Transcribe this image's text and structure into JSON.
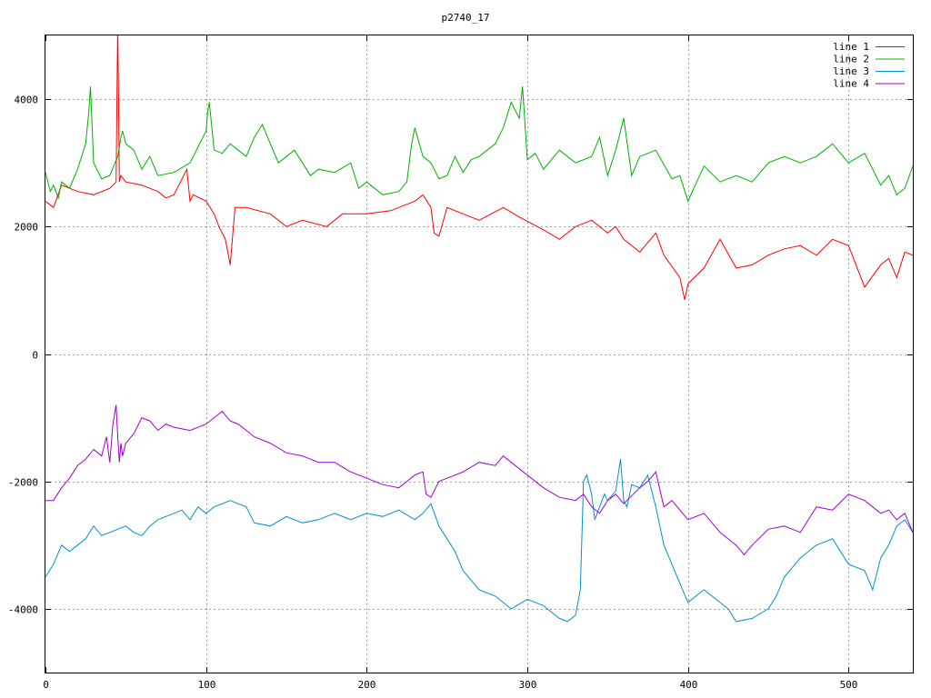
{
  "chart_data": {
    "type": "line",
    "title": "p2740_17",
    "xlabel": "",
    "ylabel": "",
    "xlim": [
      0,
      540
    ],
    "ylim": [
      -5000,
      5000
    ],
    "x_ticks": [
      "0",
      "100",
      "200",
      "300",
      "400",
      "500"
    ],
    "y_ticks": [
      "-4000",
      "-2000",
      "0",
      "2000",
      "4000"
    ],
    "grid": true,
    "legend_position": "top-right",
    "series": [
      {
        "name": "line 1",
        "color": "#ff0000",
        "x": [
          0,
          5,
          10,
          20,
          30,
          40,
          44,
          45,
          46,
          47,
          50,
          60,
          70,
          75,
          80,
          88,
          90,
          92,
          100,
          105,
          108,
          112,
          115,
          118,
          125,
          140,
          150,
          160,
          175,
          185,
          200,
          215,
          230,
          235,
          240,
          242,
          245,
          250,
          270,
          285,
          295,
          310,
          320,
          330,
          340,
          350,
          355,
          360,
          370,
          380,
          385,
          395,
          398,
          400,
          410,
          420,
          430,
          440,
          450,
          460,
          470,
          480,
          490,
          500,
          510,
          520,
          525,
          530,
          535,
          540
        ],
        "y": [
          2400,
          2300,
          2650,
          2550,
          2500,
          2600,
          2700,
          5200,
          2700,
          2800,
          2700,
          2650,
          2550,
          2450,
          2500,
          2900,
          2400,
          2500,
          2400,
          2200,
          2000,
          1800,
          1400,
          2300,
          2300,
          2200,
          2000,
          2100,
          2000,
          2200,
          2200,
          2250,
          2400,
          2500,
          2300,
          1900,
          1850,
          2300,
          2100,
          2300,
          2150,
          1950,
          1800,
          2000,
          2100,
          1900,
          2000,
          1800,
          1600,
          1900,
          1550,
          1200,
          850,
          1100,
          1350,
          1800,
          1350,
          1400,
          1550,
          1650,
          1700,
          1550,
          1800,
          1700,
          1050,
          1400,
          1500,
          1200,
          1600,
          1550
        ]
      },
      {
        "name": "line 2",
        "color": "#00b000",
        "x": [
          0,
          3,
          5,
          8,
          10,
          15,
          20,
          25,
          27,
          28,
          30,
          35,
          40,
          45,
          47,
          48,
          50,
          55,
          60,
          65,
          70,
          80,
          90,
          100,
          101,
          102,
          105,
          110,
          115,
          120,
          125,
          130,
          135,
          140,
          145,
          150,
          155,
          160,
          165,
          170,
          180,
          190,
          195,
          200,
          210,
          220,
          225,
          228,
          230,
          235,
          240,
          245,
          250,
          255,
          260,
          265,
          270,
          280,
          285,
          290,
          295,
          297,
          300,
          305,
          310,
          320,
          330,
          340,
          345,
          350,
          355,
          360,
          365,
          370,
          380,
          390,
          395,
          400,
          410,
          420,
          430,
          440,
          450,
          460,
          470,
          480,
          490,
          500,
          510,
          520,
          525,
          530,
          535,
          540
        ],
        "y": [
          2850,
          2550,
          2650,
          2450,
          2700,
          2600,
          2900,
          3300,
          3800,
          4200,
          3000,
          2750,
          2800,
          3100,
          3400,
          3500,
          3300,
          3200,
          2900,
          3100,
          2800,
          2850,
          3000,
          3500,
          3800,
          3950,
          3200,
          3150,
          3300,
          3200,
          3100,
          3400,
          3600,
          3300,
          3000,
          3100,
          3200,
          3000,
          2800,
          2900,
          2850,
          3000,
          2600,
          2700,
          2500,
          2550,
          2700,
          3300,
          3550,
          3100,
          3000,
          2750,
          2800,
          3100,
          2850,
          3050,
          3100,
          3300,
          3550,
          3950,
          3700,
          4200,
          3050,
          3150,
          2900,
          3200,
          3000,
          3100,
          3400,
          2800,
          3200,
          3700,
          2800,
          3100,
          3200,
          2750,
          2800,
          2400,
          2950,
          2700,
          2800,
          2700,
          3000,
          3100,
          3000,
          3100,
          3300,
          3000,
          3150,
          2650,
          2800,
          2500,
          2600,
          2950
        ]
      },
      {
        "name": "line 3",
        "color": "#0090d0",
        "x": [
          0,
          5,
          10,
          15,
          20,
          25,
          30,
          35,
          40,
          45,
          50,
          55,
          60,
          65,
          70,
          75,
          80,
          85,
          90,
          95,
          100,
          105,
          110,
          115,
          120,
          125,
          130,
          140,
          150,
          160,
          170,
          180,
          190,
          200,
          210,
          220,
          230,
          235,
          240,
          245,
          250,
          255,
          260,
          270,
          280,
          290,
          300,
          310,
          320,
          325,
          330,
          333,
          335,
          337,
          340,
          342,
          345,
          348,
          350,
          355,
          358,
          360,
          362,
          365,
          370,
          375,
          378,
          380,
          385,
          390,
          395,
          400,
          405,
          410,
          420,
          425,
          430,
          440,
          450,
          455,
          460,
          470,
          480,
          490,
          500,
          510,
          515,
          520,
          525,
          530,
          535,
          540
        ],
        "y": [
          -3500,
          -3300,
          -3000,
          -3100,
          -3000,
          -2900,
          -2700,
          -2850,
          -2800,
          -2750,
          -2700,
          -2800,
          -2850,
          -2700,
          -2600,
          -2550,
          -2500,
          -2450,
          -2600,
          -2400,
          -2500,
          -2400,
          -2350,
          -2300,
          -2350,
          -2400,
          -2650,
          -2700,
          -2550,
          -2650,
          -2600,
          -2500,
          -2600,
          -2500,
          -2550,
          -2450,
          -2600,
          -2500,
          -2350,
          -2700,
          -2900,
          -3100,
          -3400,
          -3700,
          -3800,
          -4000,
          -3850,
          -3950,
          -4150,
          -4200,
          -4100,
          -3700,
          -2000,
          -1900,
          -2200,
          -2600,
          -2400,
          -2200,
          -2300,
          -2150,
          -1650,
          -2300,
          -2400,
          -2050,
          -2100,
          -1900,
          -2200,
          -2400,
          -3000,
          -3300,
          -3600,
          -3900,
          -3800,
          -3700,
          -3900,
          -4000,
          -4200,
          -4150,
          -4000,
          -3800,
          -3500,
          -3200,
          -3000,
          -2900,
          -3300,
          -3400,
          -3700,
          -3200,
          -3000,
          -2700,
          -2600,
          -2800
        ],
        "_note": ""
      },
      {
        "name": "line 4",
        "color": "#a000d0",
        "x": [
          0,
          5,
          10,
          15,
          20,
          25,
          30,
          35,
          38,
          40,
          42,
          44,
          45,
          46,
          47,
          48,
          50,
          55,
          60,
          65,
          70,
          75,
          80,
          90,
          100,
          105,
          110,
          115,
          120,
          130,
          140,
          150,
          160,
          170,
          180,
          190,
          200,
          210,
          220,
          230,
          235,
          237,
          240,
          245,
          250,
          260,
          270,
          280,
          285,
          290,
          300,
          310,
          320,
          330,
          335,
          340,
          345,
          350,
          355,
          360,
          370,
          375,
          380,
          385,
          390,
          400,
          410,
          420,
          430,
          435,
          440,
          450,
          460,
          470,
          480,
          490,
          500,
          510,
          520,
          525,
          530,
          535,
          540
        ],
        "y": [
          -2300,
          -2300,
          -2100,
          -1950,
          -1750,
          -1650,
          -1500,
          -1600,
          -1300,
          -1700,
          -1100,
          -800,
          -1300,
          -1700,
          -1400,
          -1600,
          -1400,
          -1250,
          -1000,
          -1050,
          -1200,
          -1100,
          -1150,
          -1200,
          -1100,
          -1000,
          -900,
          -1050,
          -1100,
          -1300,
          -1400,
          -1550,
          -1600,
          -1700,
          -1700,
          -1850,
          -1950,
          -2050,
          -2100,
          -1900,
          -1850,
          -2200,
          -2250,
          -2000,
          -1950,
          -1850,
          -1700,
          -1750,
          -1600,
          -1700,
          -1900,
          -2100,
          -2250,
          -2300,
          -2200,
          -2400,
          -2500,
          -2300,
          -2200,
          -2350,
          -2100,
          -2000,
          -1850,
          -2400,
          -2300,
          -2600,
          -2500,
          -2800,
          -3000,
          -3150,
          -3000,
          -2750,
          -2700,
          -2800,
          -2400,
          -2450,
          -2200,
          -2300,
          -2500,
          -2450,
          -2600,
          -2500,
          -2800
        ]
      }
    ]
  }
}
